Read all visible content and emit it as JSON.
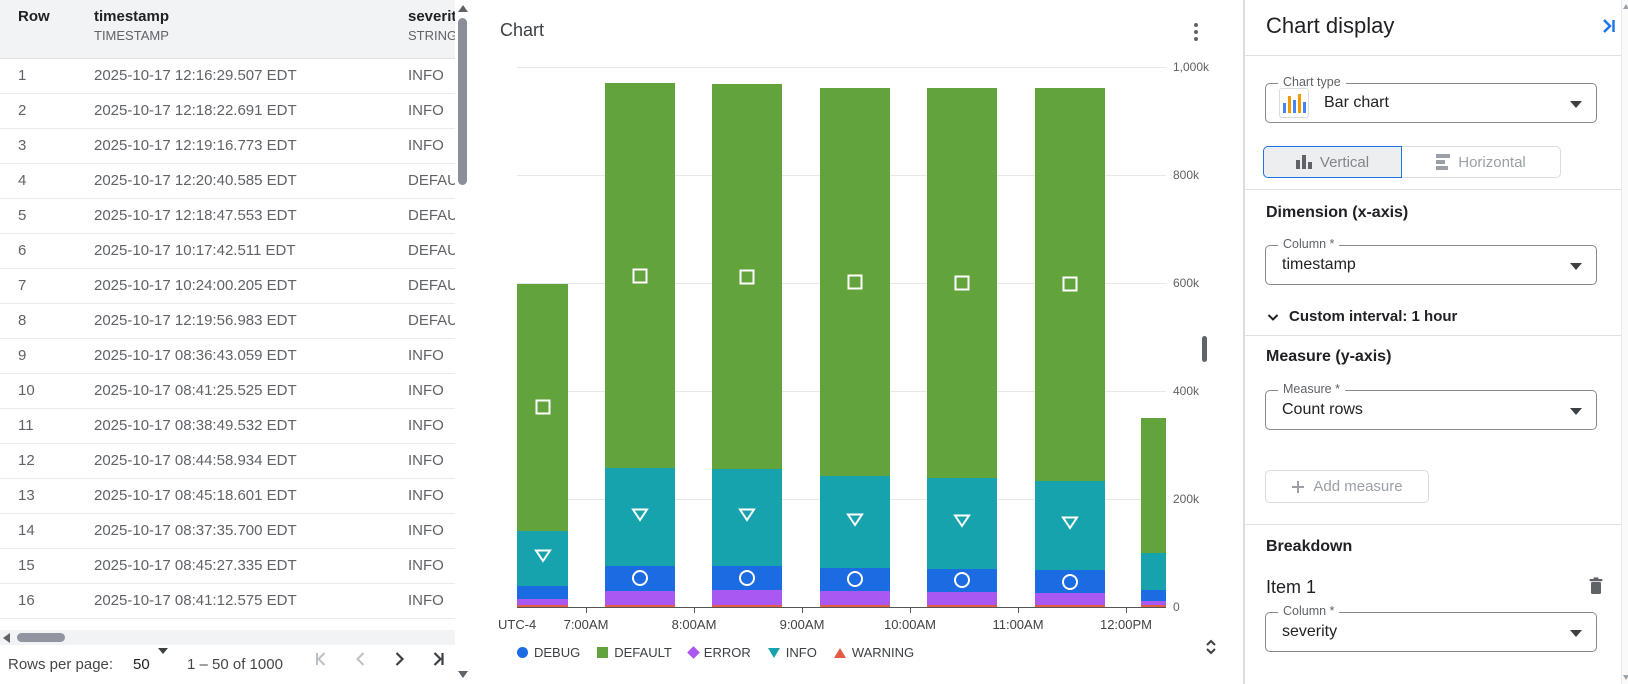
{
  "table": {
    "columns": [
      {
        "name": "Row",
        "type": ""
      },
      {
        "name": "timestamp",
        "type": "TIMESTAMP"
      },
      {
        "name": "severity",
        "type": "STRING"
      }
    ],
    "rows": [
      [
        "1",
        "2025-10-17 12:16:29.507 EDT",
        "INFO"
      ],
      [
        "2",
        "2025-10-17 12:18:22.691 EDT",
        "INFO"
      ],
      [
        "3",
        "2025-10-17 12:19:16.773 EDT",
        "INFO"
      ],
      [
        "4",
        "2025-10-17 12:20:40.585 EDT",
        "DEFAULT"
      ],
      [
        "5",
        "2025-10-17 12:18:47.553 EDT",
        "DEFAULT"
      ],
      [
        "6",
        "2025-10-17 10:17:42.511 EDT",
        "DEFAULT"
      ],
      [
        "7",
        "2025-10-17 10:24:00.205 EDT",
        "DEFAULT"
      ],
      [
        "8",
        "2025-10-17 12:19:56.983 EDT",
        "DEFAULT"
      ],
      [
        "9",
        "2025-10-17 08:36:43.059 EDT",
        "INFO"
      ],
      [
        "10",
        "2025-10-17 08:41:25.525 EDT",
        "INFO"
      ],
      [
        "11",
        "2025-10-17 08:38:49.532 EDT",
        "INFO"
      ],
      [
        "12",
        "2025-10-17 08:44:58.934 EDT",
        "INFO"
      ],
      [
        "13",
        "2025-10-17 08:45:18.601 EDT",
        "INFO"
      ],
      [
        "14",
        "2025-10-17 08:37:35.700 EDT",
        "INFO"
      ],
      [
        "15",
        "2025-10-17 08:45:27.335 EDT",
        "INFO"
      ],
      [
        "16",
        "2025-10-17 08:41:12.575 EDT",
        "INFO"
      ]
    ],
    "footer": {
      "rows_per_page_label": "Rows per page:",
      "rows_per_page_value": "50",
      "range_label": "1 – 50 of 1000"
    }
  },
  "chart": {
    "title": "Chart"
  },
  "chart_data": {
    "type": "bar",
    "stacked": true,
    "orientation": "vertical",
    "title": "Chart",
    "measure": "Count rows",
    "breakdown": "severity",
    "x_axis": {
      "timezone_label": "UTC-4",
      "tick_labels": [
        "7:00AM",
        "8:00AM",
        "9:00AM",
        "10:00AM",
        "11:00AM",
        "12:00PM"
      ],
      "interval": "1 hour"
    },
    "y_axis": {
      "tick_labels": [
        "1,000k",
        "800k",
        "600k",
        "400k",
        "200k",
        "0"
      ],
      "range_k": [
        0,
        1000
      ]
    },
    "grid": true,
    "legend_position": "bottom",
    "stack_order_bottom_to_top": [
      "WARNING",
      "ERROR",
      "DEBUG",
      "INFO",
      "DEFAULT"
    ],
    "series": [
      {
        "name": "DEBUG",
        "color": "#1b6be3",
        "shape": "circle",
        "values_k": [
          24,
          46,
          45,
          43,
          43,
          42,
          20
        ]
      },
      {
        "name": "DEFAULT",
        "color": "#62a33c",
        "shape": "square",
        "values_k": [
          457,
          713,
          712,
          718,
          722,
          728,
          250
        ]
      },
      {
        "name": "ERROR",
        "color": "#a958f2",
        "shape": "diamond",
        "values_k": [
          11,
          26,
          27,
          26,
          24,
          22,
          9
        ]
      },
      {
        "name": "INFO",
        "color": "#17a3ae",
        "shape": "triangle-down",
        "values_k": [
          102,
          181,
          180,
          170,
          168,
          166,
          68
        ]
      },
      {
        "name": "WARNING",
        "color": "#e45b48",
        "shape": "triangle-up",
        "values_k": [
          4,
          4,
          4,
          4,
          4,
          4,
          3
        ]
      }
    ],
    "point_markers_on_bars": {
      "DEFAULT": [
        0,
        1,
        2,
        3,
        4,
        5
      ],
      "INFO": [
        0,
        1,
        2,
        3,
        4,
        5
      ],
      "DEBUG": [
        1,
        2,
        3,
        4,
        5
      ]
    }
  },
  "panel": {
    "title": "Chart display",
    "chart_type": {
      "label": "Chart type",
      "value": "Bar chart"
    },
    "orientation": {
      "vertical_label": "Vertical",
      "horizontal_label": "Horizontal",
      "selected": "Vertical"
    },
    "dimension": {
      "heading": "Dimension (x-axis)",
      "column_label": "Column *",
      "column_value": "timestamp",
      "custom_interval": "Custom interval: 1 hour"
    },
    "measure": {
      "heading": "Measure (y-axis)",
      "field_label": "Measure *",
      "field_value": "Count rows",
      "add_button_label": "Add measure"
    },
    "breakdown": {
      "heading": "Breakdown",
      "item_label": "Item 1",
      "column_label": "Column *",
      "column_value": "severity"
    }
  }
}
